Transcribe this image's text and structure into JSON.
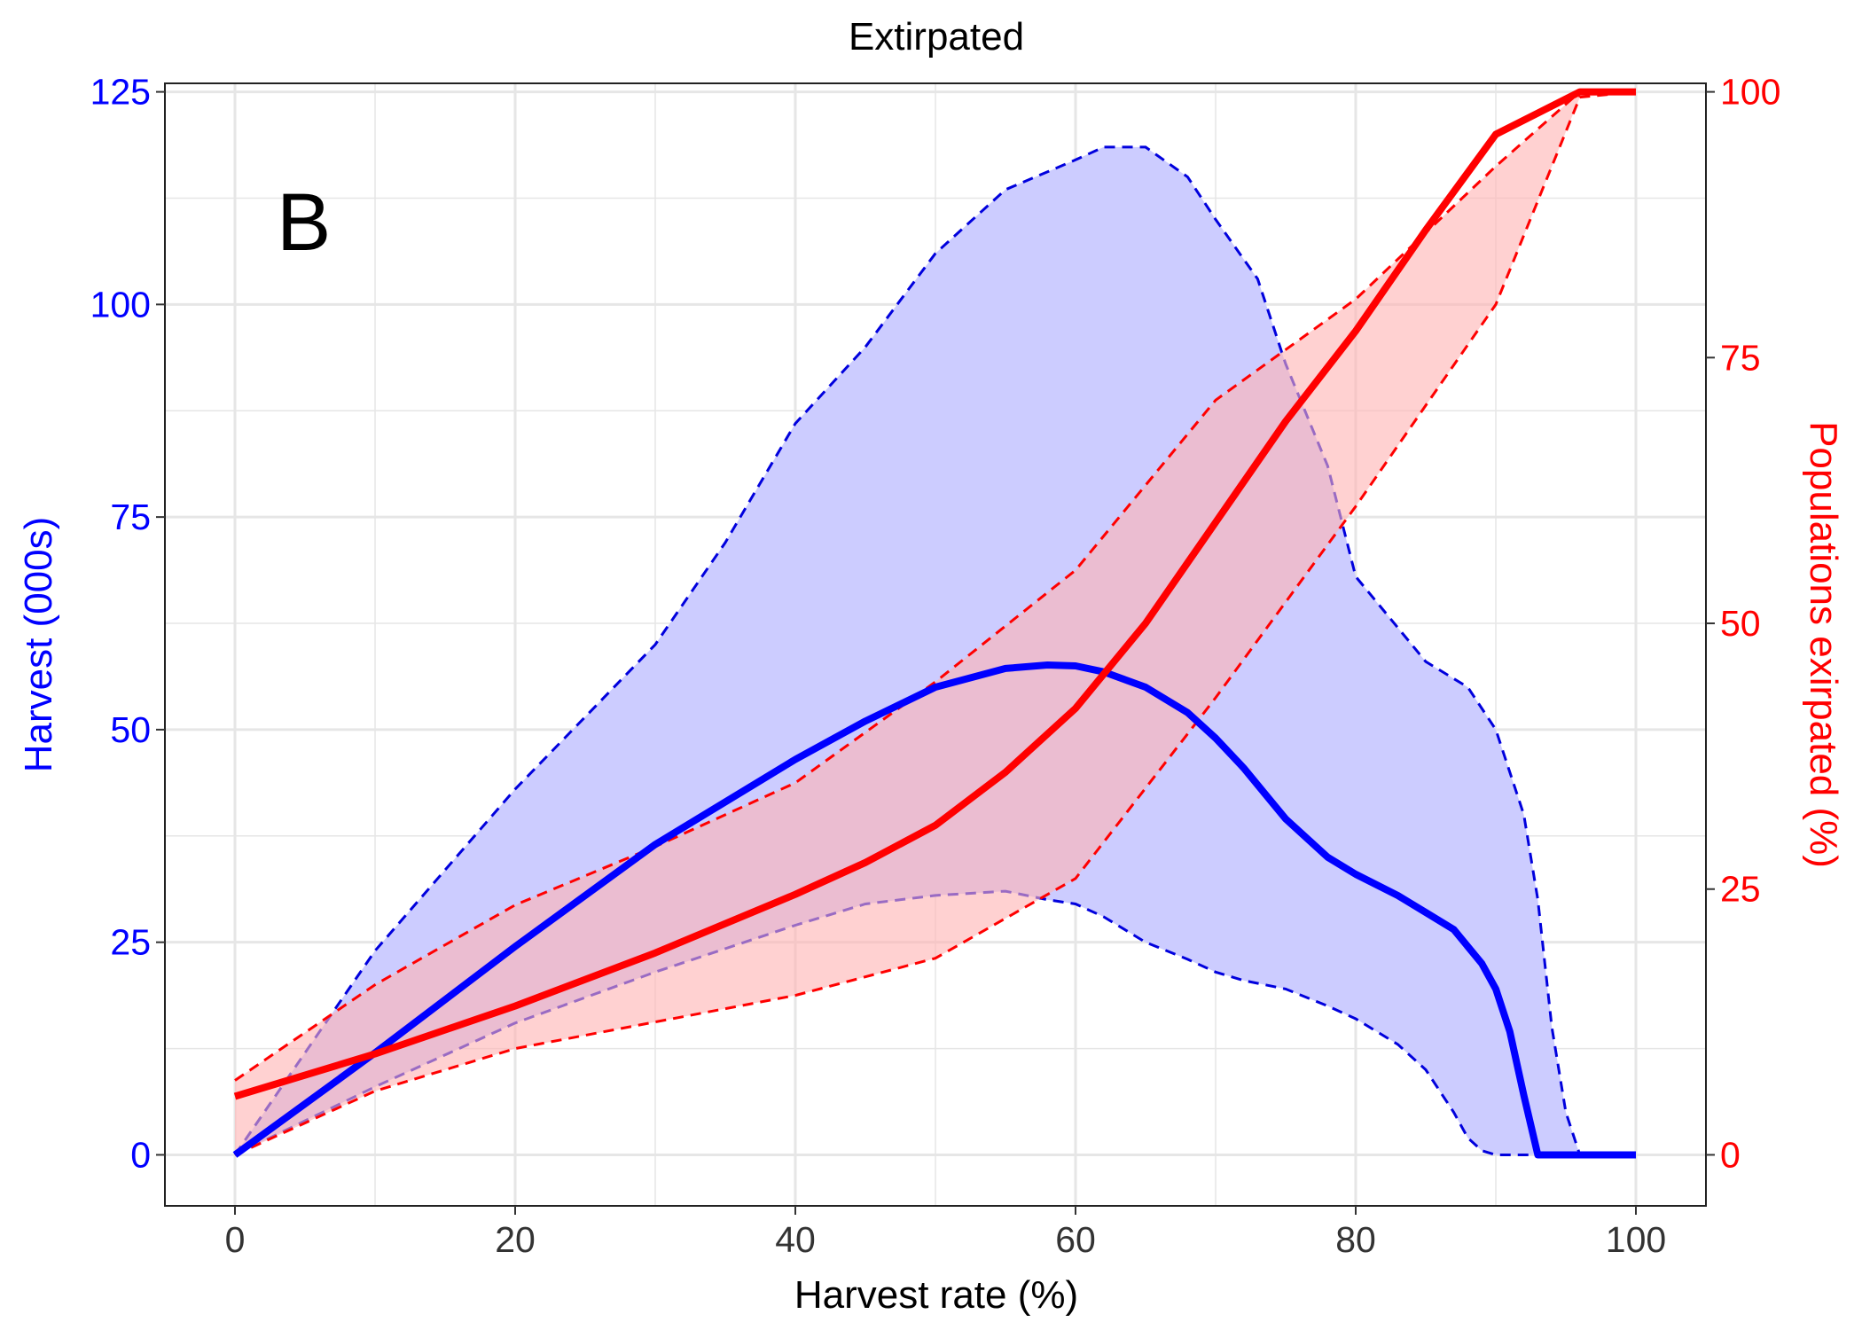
{
  "chart_data": {
    "type": "line",
    "title": "Extirpated",
    "panel_label": "B",
    "xlabel": "Harvest rate (%)",
    "ylabel_left": "Harvest (000s)",
    "ylabel_right": "Populations exirpated (%)",
    "xlim": [
      -5,
      105
    ],
    "ylim_left": [
      -6,
      126
    ],
    "ylim_right": [
      -4.8,
      100.8
    ],
    "x_ticks": [
      0,
      20,
      40,
      60,
      80,
      100
    ],
    "y_left_ticks": [
      0,
      25,
      50,
      75,
      100,
      125
    ],
    "y_right_ticks": [
      0,
      25,
      50,
      75,
      100
    ],
    "grid": true,
    "colors": {
      "harvest_line": "#0000ff",
      "harvest_band_fill": "#ccccff",
      "harvest_band_edge": "#0000dd",
      "extirpated_line": "#ff0000",
      "extirpated_band_fill": "#ffb3b3",
      "grid": "#e6e6e6",
      "panel_border": "#222222"
    },
    "series": [
      {
        "axis": "left",
        "role": "median",
        "x": [
          0,
          10,
          20,
          30,
          40,
          45,
          50,
          55,
          58,
          60,
          62,
          65,
          68,
          70,
          72,
          75,
          78,
          80,
          83,
          85,
          87,
          89,
          90,
          91,
          92,
          93,
          95,
          97,
          100
        ],
        "values": [
          0,
          12,
          24.5,
          36.5,
          46.5,
          51,
          55,
          57.2,
          57.6,
          57.5,
          56.8,
          55,
          52,
          49,
          45.5,
          39.5,
          35,
          33,
          30.5,
          28.5,
          26.5,
          22.5,
          19.5,
          14.5,
          7,
          0,
          0,
          0,
          0
        ]
      },
      {
        "axis": "left",
        "role": "upper",
        "x": [
          0,
          5,
          10,
          20,
          30,
          35,
          40,
          45,
          50,
          55,
          60,
          62,
          65,
          68,
          70,
          73,
          75,
          78,
          80,
          83,
          85,
          88,
          90,
          92,
          93,
          94,
          95,
          96,
          100
        ],
        "values": [
          0,
          12,
          24,
          43,
          60,
          72,
          86,
          95,
          106,
          113.5,
          117,
          118.5,
          118.5,
          115,
          110,
          103,
          93,
          81,
          68,
          62,
          58,
          55,
          50,
          40,
          30,
          15,
          5,
          0,
          0
        ]
      },
      {
        "axis": "left",
        "role": "lower",
        "x": [
          0,
          10,
          20,
          30,
          40,
          45,
          50,
          55,
          58,
          60,
          62,
          65,
          68,
          70,
          72,
          75,
          78,
          80,
          83,
          85,
          87,
          88,
          89,
          90,
          91,
          92,
          95,
          100
        ],
        "values": [
          0,
          8,
          15.5,
          21.5,
          27,
          29.5,
          30.5,
          31,
          30,
          29.5,
          28,
          25,
          23,
          21.5,
          20.5,
          19.5,
          17.5,
          16,
          13,
          10,
          5,
          2,
          0.5,
          0,
          0,
          0,
          0,
          0
        ]
      },
      {
        "axis": "right",
        "role": "median",
        "x": [
          0,
          10,
          20,
          30,
          40,
          45,
          50,
          55,
          60,
          65,
          70,
          75,
          80,
          85,
          90,
          96,
          100
        ],
        "values": [
          5.5,
          9.5,
          14,
          19,
          24.5,
          27.5,
          31,
          36,
          42,
          50,
          59.5,
          69,
          77.5,
          87,
          96,
          100,
          100
        ]
      },
      {
        "axis": "right",
        "role": "upper",
        "x": [
          0,
          10,
          20,
          30,
          40,
          50,
          60,
          70,
          80,
          90,
          96,
          100
        ],
        "values": [
          7,
          16,
          23.5,
          29,
          35,
          44.5,
          55,
          71,
          80.5,
          93,
          100,
          100
        ]
      },
      {
        "axis": "right",
        "role": "lower",
        "x": [
          0,
          10,
          20,
          30,
          40,
          50,
          60,
          70,
          80,
          90,
          96,
          100
        ],
        "values": [
          0,
          6,
          10,
          12.5,
          15,
          18.5,
          26,
          43,
          61,
          80,
          99.5,
          100
        ]
      }
    ]
  }
}
